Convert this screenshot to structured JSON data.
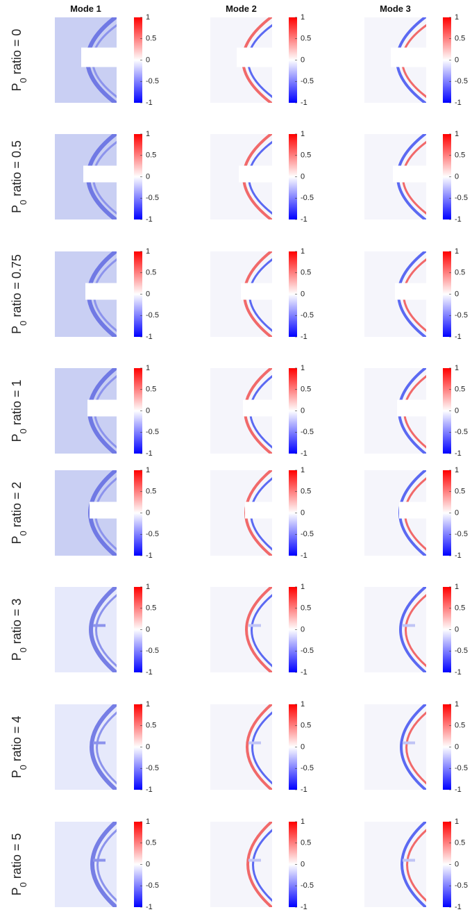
{
  "columns": [
    "Mode 1",
    "Mode 2",
    "Mode 3"
  ],
  "rows": [
    {
      "symbol": "P",
      "subscript": "0",
      "text": "ratio = 0"
    },
    {
      "symbol": "P",
      "subscript": "0",
      "text": "ratio = 0.5"
    },
    {
      "symbol": "P",
      "subscript": "0",
      "text": "ratio = 0.75"
    },
    {
      "symbol": "P",
      "subscript": "0",
      "text": "ratio = 1"
    },
    {
      "symbol": "P",
      "subscript": "0",
      "text": "ratio = 2"
    },
    {
      "symbol": "P",
      "subscript": "0",
      "text": "ratio = 3"
    },
    {
      "symbol": "P",
      "subscript": "0",
      "text": "ratio = 4"
    },
    {
      "symbol": "P",
      "subscript": "0",
      "text": "ratio = 5"
    }
  ],
  "colorbar": {
    "ticks": [
      1,
      0.5,
      0,
      -0.5,
      -1
    ]
  }
}
